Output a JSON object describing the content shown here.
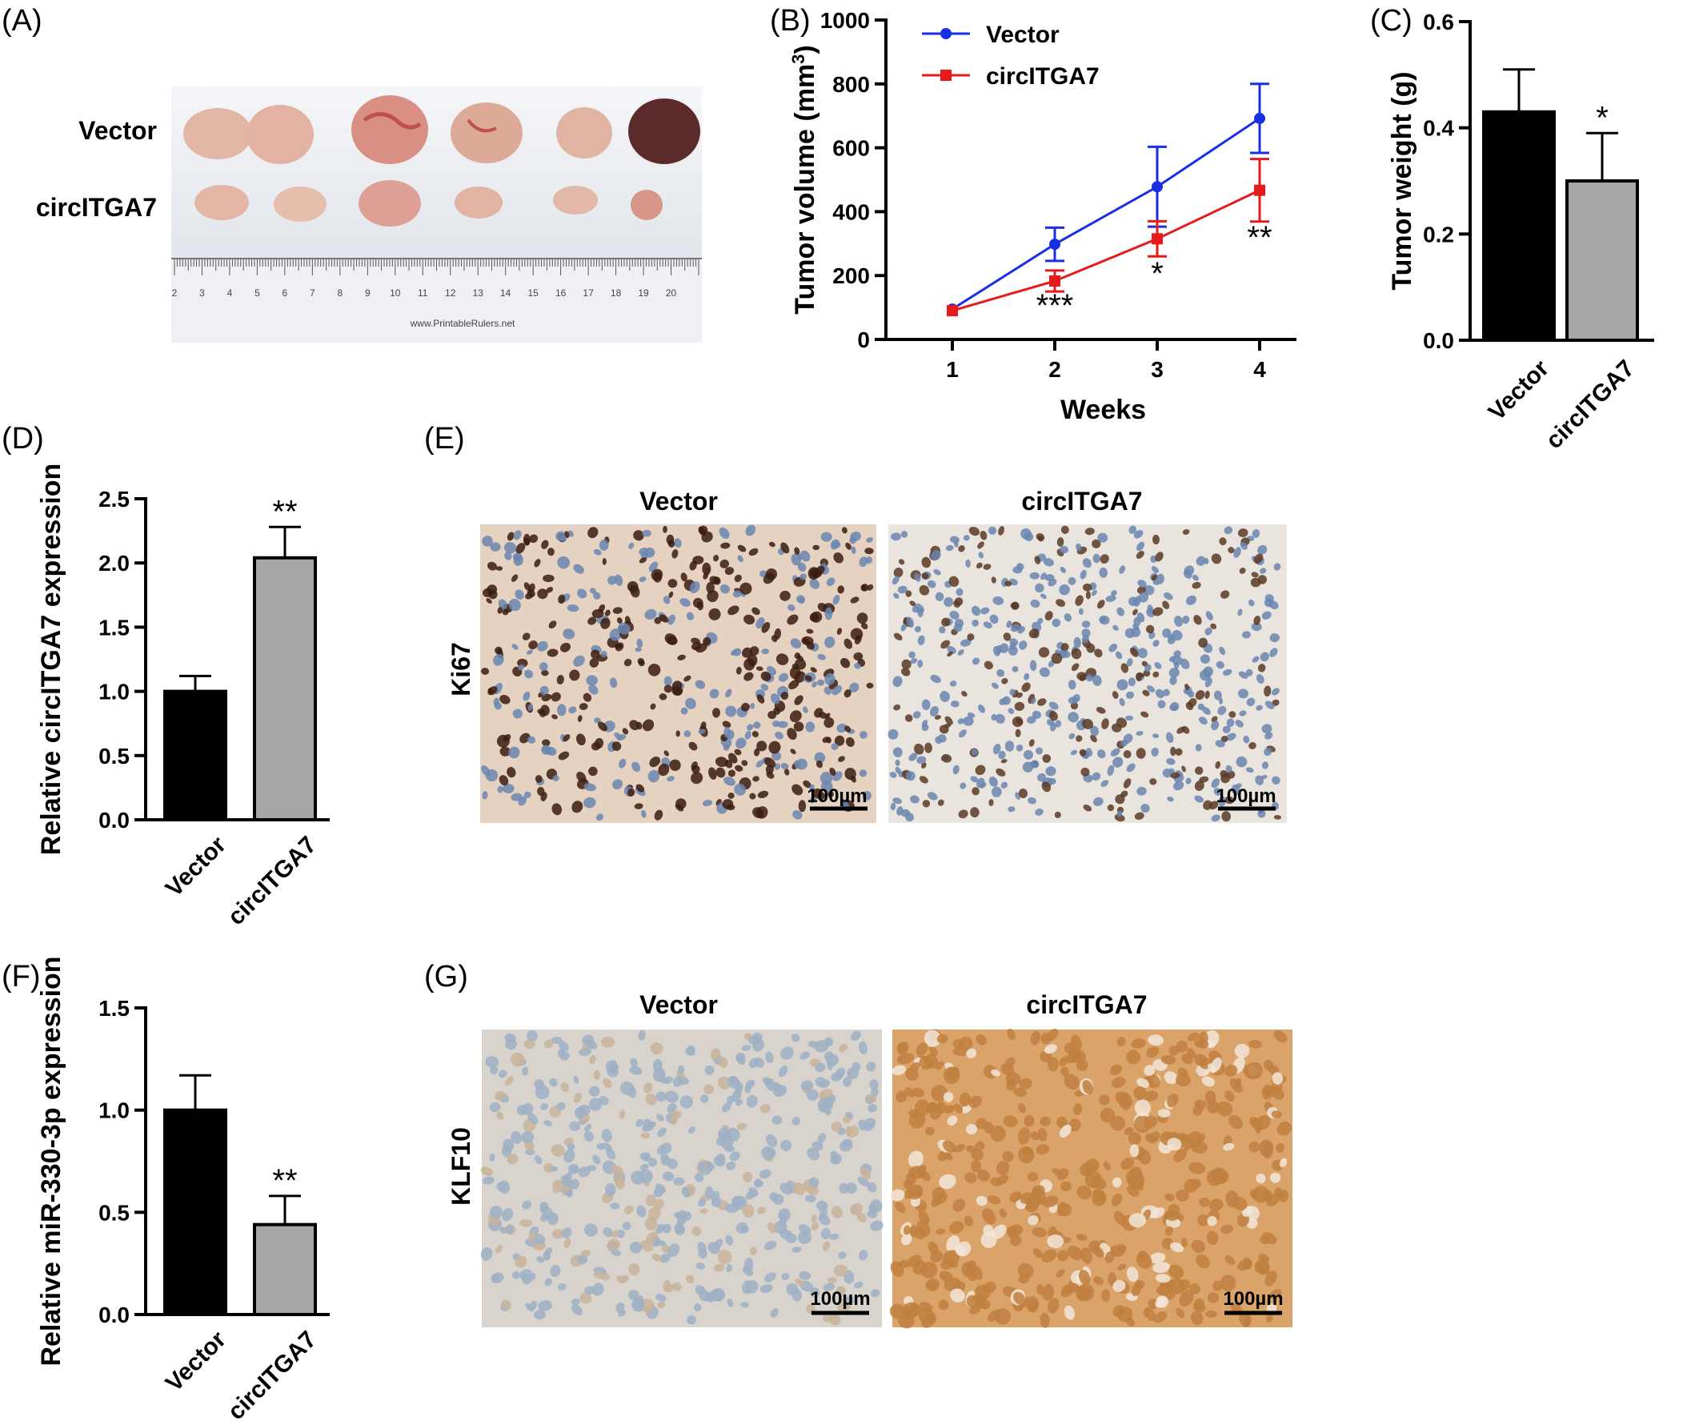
{
  "panels": {
    "A": {
      "label": "(A)",
      "row_labels": [
        "Vector",
        "circITGA7"
      ],
      "ruler_text": "www.PrintableRulers.net",
      "ruler_numbers": [
        "2",
        "3",
        "4",
        "5",
        "6",
        "7",
        "8",
        "9",
        "10",
        "11",
        "12",
        "13",
        "14",
        "15",
        "16",
        "17",
        "18",
        "19",
        "20"
      ]
    },
    "E": {
      "label": "(E)",
      "column_headers": [
        "Vector",
        "circITGA7"
      ],
      "row_label": "Ki67",
      "scale_bar": "100µm",
      "colors": {
        "vector_bg": "#e6d2c0",
        "vector_nucleus": "#3b1d0f",
        "circ_bg": "#e9e4de",
        "circ_nucleus": "#5a3a24",
        "hema": "#6a86b0"
      }
    },
    "G": {
      "label": "(G)",
      "column_headers": [
        "Vector",
        "circITGA7"
      ],
      "row_label": "KLF10",
      "scale_bar": "100µm",
      "colors": {
        "vector_bg": "#d8d3cc",
        "vector_cell": "#9fb0c4",
        "circ_bg": "#d9a36a",
        "circ_cell": "#c0803f"
      }
    }
  },
  "chart_data": [
    {
      "id": "B",
      "panel_label": "(B)",
      "type": "line",
      "xlabel": "Weeks",
      "ylabel": "Tumor volume  (mm",
      "ylabel_sup": "3",
      "ylabel_close": ")",
      "x": [
        1,
        2,
        3,
        4
      ],
      "xticks": [
        "1",
        "2",
        "3",
        "4"
      ],
      "ylim": [
        0,
        1000
      ],
      "yticks": [
        "0",
        "200",
        "400",
        "600",
        "800",
        "1000"
      ],
      "legend_position": "top-left",
      "series": [
        {
          "name": "Vector",
          "color": "#1a2ee6",
          "marker": "circle",
          "values": [
            95,
            298,
            478,
            692
          ],
          "errors": [
            8,
            52,
            125,
            108
          ]
        },
        {
          "name": "circITGA7",
          "color": "#e61a1a",
          "marker": "square",
          "values": [
            90,
            183,
            315,
            467
          ],
          "errors": [
            6,
            33,
            55,
            98
          ]
        }
      ],
      "annotations": [
        {
          "x": 2,
          "text": "***"
        },
        {
          "x": 3,
          "text": "*"
        },
        {
          "x": 4,
          "text": "**"
        }
      ]
    },
    {
      "id": "C",
      "panel_label": "(C)",
      "type": "bar",
      "ylabel": "Tumor weight (g)",
      "categories": [
        "Vector",
        "circITGA7"
      ],
      "values": [
        0.43,
        0.3
      ],
      "errors": [
        0.08,
        0.09
      ],
      "colors": [
        "#000000",
        "#a6a6a6"
      ],
      "ylim": [
        0,
        0.6
      ],
      "yticks": [
        "0.0",
        "0.2",
        "0.4",
        "0.6"
      ],
      "annotations": [
        {
          "category": "circITGA7",
          "text": "*"
        }
      ]
    },
    {
      "id": "D",
      "panel_label": "(D)",
      "type": "bar",
      "ylabel": "Relative circITGA7 expression",
      "categories": [
        "Vector",
        "circITGA7"
      ],
      "values": [
        1.0,
        2.04
      ],
      "errors": [
        0.12,
        0.24
      ],
      "colors": [
        "#000000",
        "#a6a6a6"
      ],
      "ylim": [
        0,
        2.5
      ],
      "yticks": [
        "0.0",
        "0.5",
        "1.0",
        "1.5",
        "2.0",
        "2.5"
      ],
      "annotations": [
        {
          "category": "circITGA7",
          "text": "**"
        }
      ]
    },
    {
      "id": "F",
      "panel_label": "(F)",
      "type": "bar",
      "ylabel": "Relative miR-330-3p expression",
      "categories": [
        "Vector",
        "circITGA7"
      ],
      "values": [
        1.0,
        0.44
      ],
      "errors": [
        0.17,
        0.14
      ],
      "colors": [
        "#000000",
        "#a6a6a6"
      ],
      "ylim": [
        0,
        1.5
      ],
      "yticks": [
        "0.0",
        "0.5",
        "1.0",
        "1.5"
      ],
      "annotations": [
        {
          "category": "circITGA7",
          "text": "**"
        }
      ]
    }
  ]
}
